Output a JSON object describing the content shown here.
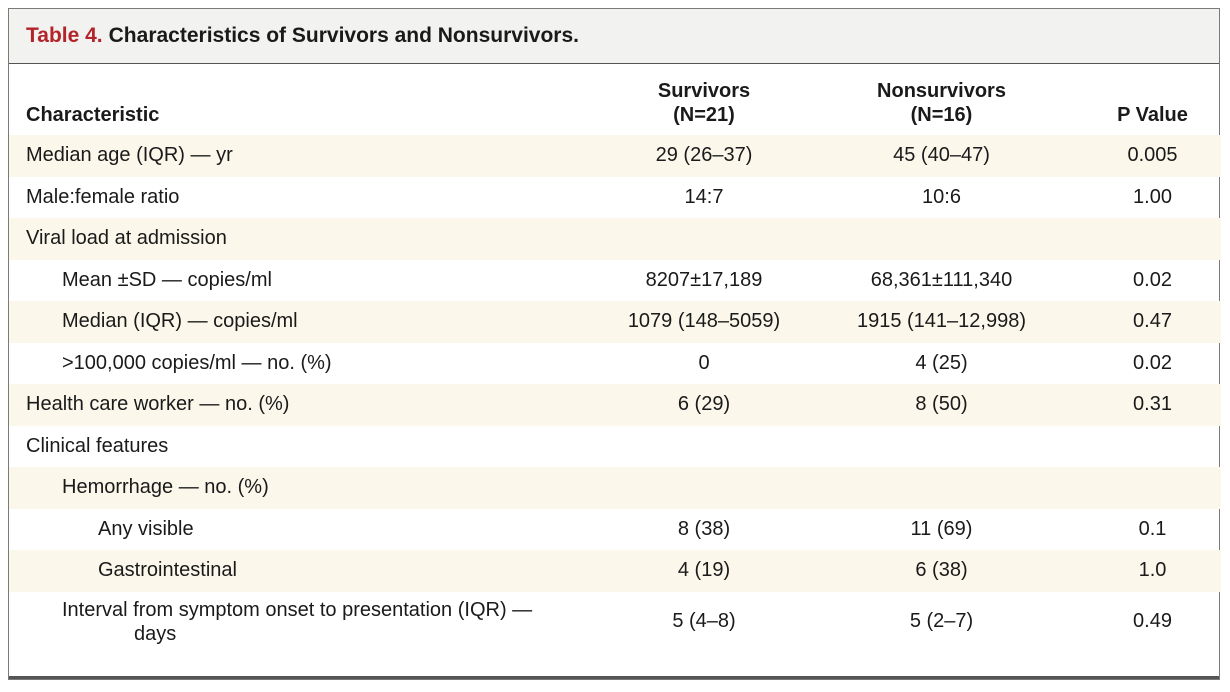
{
  "table": {
    "title_label": "Table 4.",
    "title_text": "Characteristics of Survivors and Nonsurvivors.",
    "headers": {
      "characteristic": "Characteristic",
      "survivors_line1": "Survivors",
      "survivors_line2": "(N=21)",
      "nonsurvivors_line1": "Nonsurvivors",
      "nonsurvivors_line2": "(N=16)",
      "pvalue": "P Value"
    },
    "rows": [
      {
        "label": "Median age (IQR) — yr",
        "survivors": "29 (26–37)",
        "nonsurvivors": "45 (40–47)",
        "p": "0.005"
      },
      {
        "label": "Male:female ratio",
        "survivors": "14:7",
        "nonsurvivors": "10:6",
        "p": "1.00"
      },
      {
        "label": "Viral load at admission",
        "survivors": "",
        "nonsurvivors": "",
        "p": ""
      },
      {
        "label": "Mean ±SD — copies/ml",
        "survivors": "8207±17,189",
        "nonsurvivors": "68,361±111,340",
        "p": "0.02"
      },
      {
        "label": "Median (IQR) — copies/ml",
        "survivors": "1079 (148–5059)",
        "nonsurvivors": "1915 (141–12,998)",
        "p": "0.47"
      },
      {
        "label": ">100,000 copies/ml — no. (%)",
        "survivors": "0",
        "nonsurvivors": "4 (25)",
        "p": "0.02"
      },
      {
        "label": "Health care worker — no. (%)",
        "survivors": "6 (29)",
        "nonsurvivors": "8 (50)",
        "p": "0.31"
      },
      {
        "label": "Clinical features",
        "survivors": "",
        "nonsurvivors": "",
        "p": ""
      },
      {
        "label": "Hemorrhage — no. (%)",
        "survivors": "",
        "nonsurvivors": "",
        "p": ""
      },
      {
        "label": "Any visible",
        "survivors": "8 (38)",
        "nonsurvivors": "11 (69)",
        "p": "0.1"
      },
      {
        "label": "Gastrointestinal",
        "survivors": "4 (19)",
        "nonsurvivors": "6 (38)",
        "p": "1.0"
      },
      {
        "label_line1": "Interval from symptom onset to presentation (IQR) —",
        "label_line2": "days",
        "survivors": "5 (4–8)",
        "nonsurvivors": "5 (2–7)",
        "p": "0.49"
      }
    ]
  }
}
